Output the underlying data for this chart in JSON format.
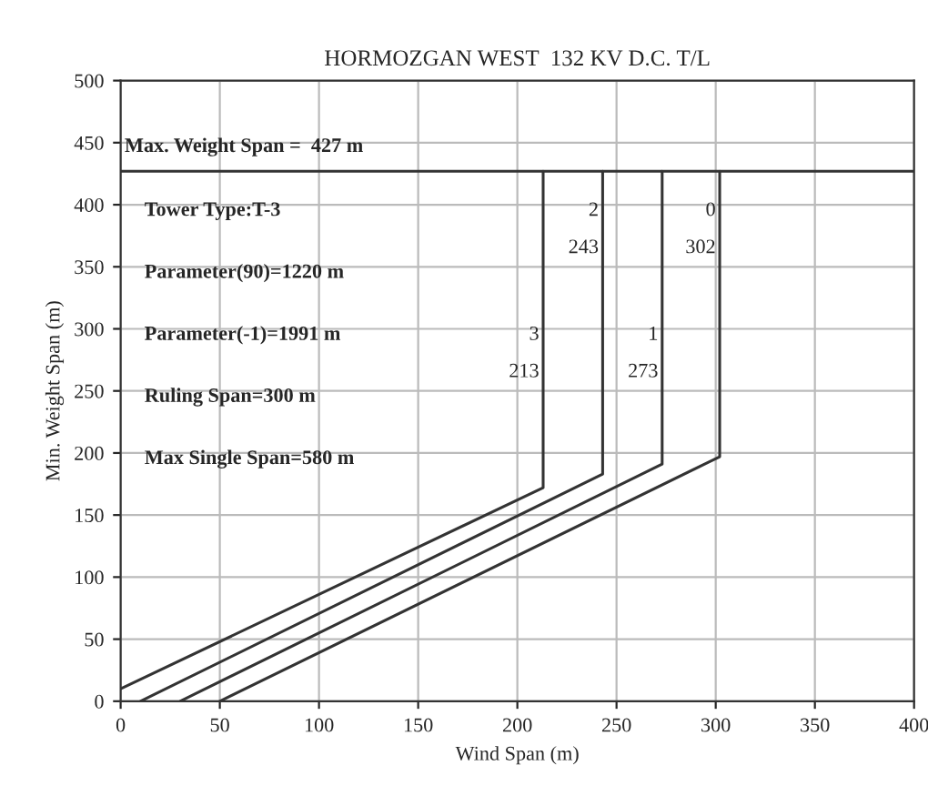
{
  "chart_data": {
    "type": "line",
    "title": "HORMOZGAN WEST  132 KV D.C. T/L",
    "xlabel": "Wind Span (m)",
    "ylabel": "Min. Weight Span (m)",
    "series": [
      {
        "name": "3",
        "color": "#333333",
        "x": [
          0,
          213,
          213
        ],
        "values": [
          10,
          172,
          427
        ]
      },
      {
        "name": "2",
        "color": "#333333",
        "x": [
          10,
          243,
          243
        ],
        "values": [
          0,
          183,
          427
        ]
      },
      {
        "name": "1",
        "color": "#333333",
        "x": [
          30,
          273,
          273
        ],
        "values": [
          0,
          191,
          427
        ]
      },
      {
        "name": "0",
        "color": "#333333",
        "x": [
          50,
          302,
          302
        ],
        "values": [
          0,
          197,
          427
        ]
      }
    ],
    "ref_lines": [
      {
        "axis": "y",
        "value": 427,
        "label": "Max. Weight Span =  427 m",
        "color": "#333333"
      }
    ],
    "annotations": [
      "Tower Type:T-3",
      "Parameter(90)=1220 m",
      "Parameter(-1)=1991 m",
      "Ruling Span=300 m",
      "Max Single Span=580 m",
      "213",
      "243",
      "273",
      "302"
    ],
    "xlim": [
      0,
      400
    ],
    "ylim": [
      0,
      500
    ],
    "xticks": [
      0,
      50,
      100,
      150,
      200,
      250,
      300,
      350,
      400
    ],
    "yticks": [
      0,
      50,
      100,
      150,
      200,
      250,
      300,
      350,
      400,
      450,
      500
    ],
    "grid": true,
    "legend": false,
    "marker": "none",
    "line_style": "solid"
  }
}
